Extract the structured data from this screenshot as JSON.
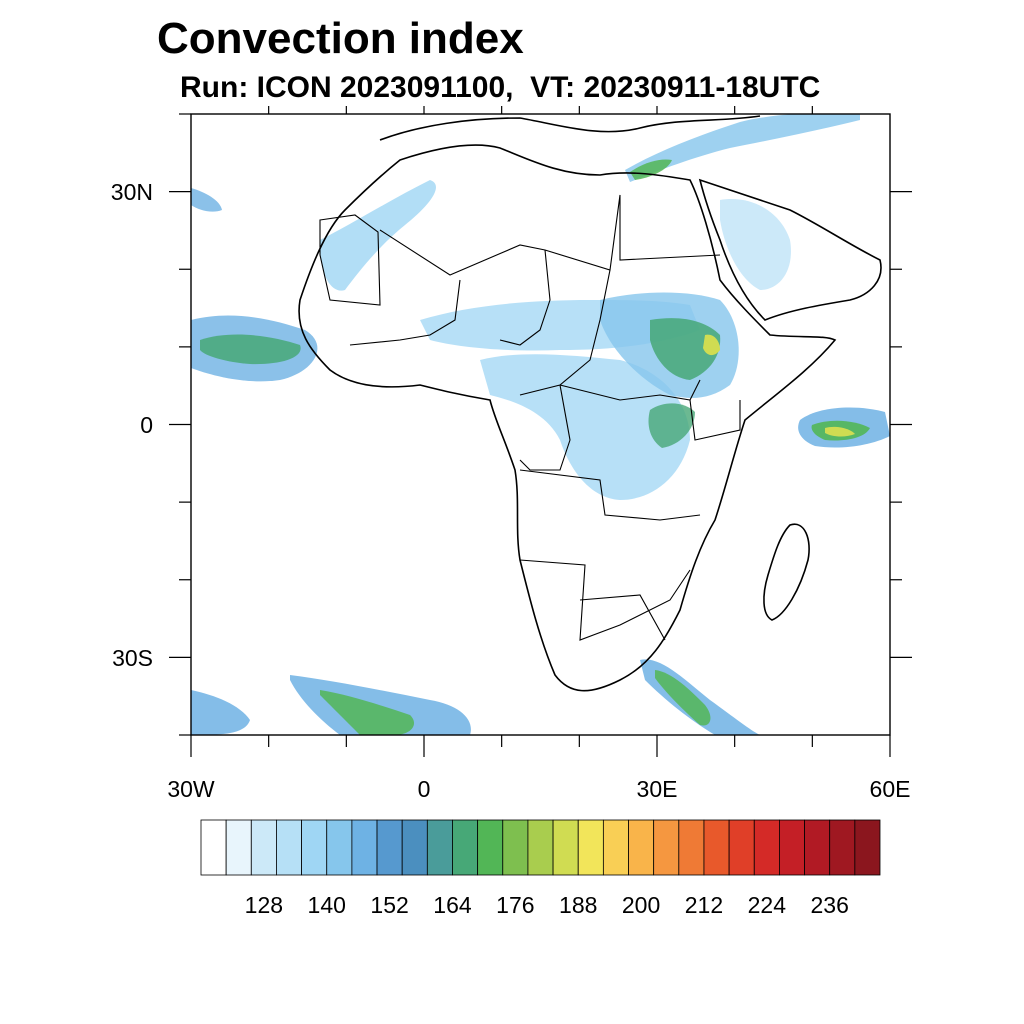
{
  "title": "Convection index",
  "subtitle": "Run: ICON 2023091100,  VT: 20230911-18UTC",
  "map": {
    "region": "Africa",
    "lon_range": [
      -30,
      60
    ],
    "lat_range": [
      -40,
      40
    ],
    "lon_ticks": [
      {
        "value": -30,
        "label": "30W"
      },
      {
        "value": 0,
        "label": "0"
      },
      {
        "value": 30,
        "label": "30E"
      },
      {
        "value": 60,
        "label": "60E"
      }
    ],
    "lat_ticks": [
      {
        "value": 30,
        "label": "30N"
      },
      {
        "value": 0,
        "label": "0"
      },
      {
        "value": -30,
        "label": "30S"
      }
    ]
  },
  "colorbar": {
    "colors": [
      "#ffffff",
      "#e8f5fc",
      "#cce9f8",
      "#b6e0f6",
      "#9fd6f4",
      "#86c6ec",
      "#6eb2e4",
      "#5699cf",
      "#4b8fbf",
      "#4a9c9a",
      "#47a877",
      "#52b656",
      "#7ebf4f",
      "#a9cd4e",
      "#d0dc52",
      "#f2e55a",
      "#f9cf55",
      "#f9b44a",
      "#f59740",
      "#ef7a35",
      "#e8592b",
      "#e03f28",
      "#d42a27",
      "#c41f26",
      "#b11a24",
      "#9f1821",
      "#8b161e"
    ],
    "labels": [
      "128",
      "140",
      "152",
      "164",
      "176",
      "188",
      "200",
      "212",
      "224",
      "236"
    ]
  }
}
